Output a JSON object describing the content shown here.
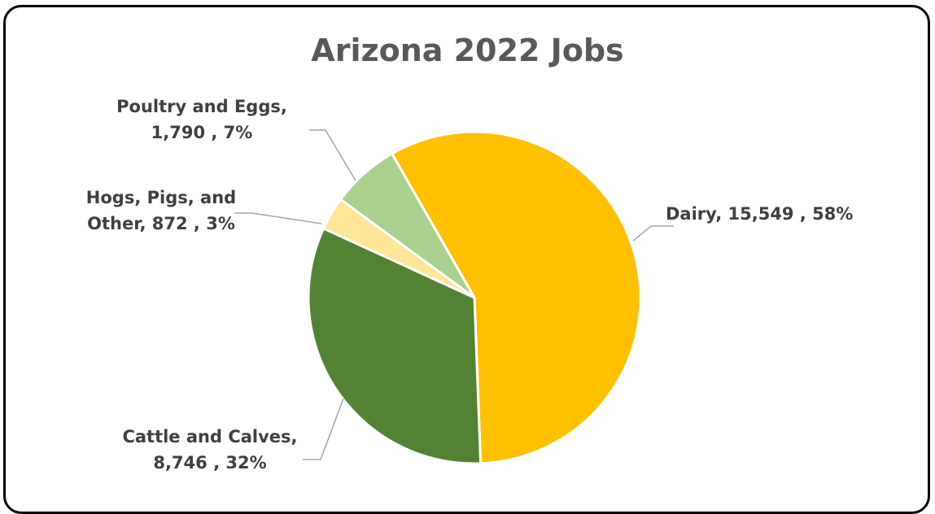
{
  "chart_data": {
    "type": "pie",
    "title": "Arizona 2022 Jobs",
    "slices": [
      {
        "label": "Dairy",
        "value": 15549,
        "percent": "58%",
        "value_text": "15,549",
        "color": "#FFC000",
        "label_lines": [
          "Dairy,  15,549 , 58%"
        ]
      },
      {
        "label": "Cattle and Calves",
        "value": 8746,
        "percent": "32%",
        "value_text": "8,746",
        "color": "#548235",
        "label_lines": [
          "Cattle and Calves,",
          "8,746 , 32%"
        ]
      },
      {
        "label": "Hogs, Pigs, and Other",
        "value": 872,
        "percent": "3%",
        "value_text": "872",
        "color": "#FFE699",
        "label_lines": [
          "Hogs, Pigs, and",
          "Other,  872 , 3%"
        ]
      },
      {
        "label": "Poultry and Eggs",
        "value": 1790,
        "percent": "7%",
        "value_text": "1,790",
        "color": "#A9D08E",
        "label_lines": [
          "Poultry and Eggs,",
          "1,790 , 7%"
        ]
      }
    ],
    "leader_line_color": "#A6A6A6",
    "label_color": "#404040"
  }
}
